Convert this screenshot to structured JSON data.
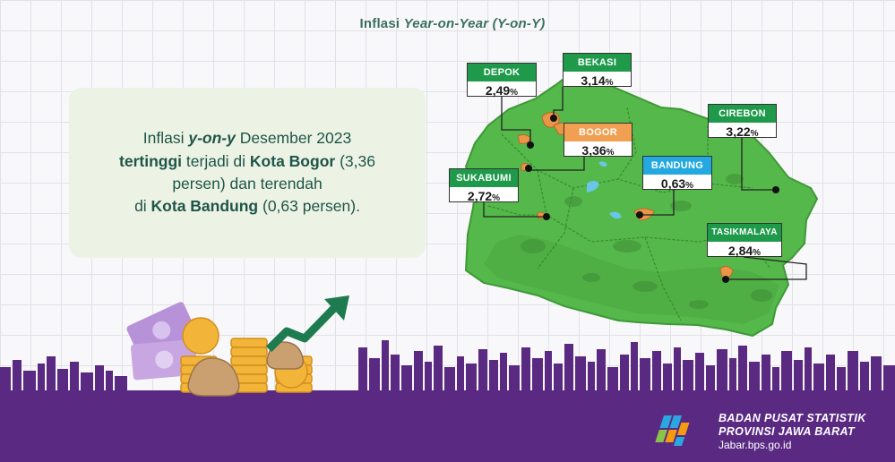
{
  "title": {
    "prefix": "Inflasi ",
    "italic": "Year-on-Year (Y-on-Y)"
  },
  "summary": {
    "t1": "Inflasi ",
    "t2": "y-on-y",
    "t3": " Desember 2023",
    "t4": "tertinggi",
    "t5": " terjadi di ",
    "t6": "Kota Bogor",
    "t7": " (3,36",
    "t8": "persen) dan terendah",
    "t9": "di ",
    "t10": "Kota Bandung",
    "t11": " (0,63 persen)."
  },
  "percent_sign": "%",
  "colors": {
    "green_label": "#1f9a4b",
    "orange_label": "#f0a050",
    "blue_label": "#23a8e0",
    "map_green": "#55b84a",
    "city_orange": "#e99647",
    "footer_purple": "#5a2a83"
  },
  "cities": [
    {
      "name": "DEPOK",
      "value": "2,49",
      "color": "green"
    },
    {
      "name": "BEKASI",
      "value": "3,14",
      "color": "green"
    },
    {
      "name": "BOGOR",
      "value": "3,36",
      "color": "orange"
    },
    {
      "name": "CIREBON",
      "value": "3,22",
      "color": "green"
    },
    {
      "name": "SUKABUMI",
      "value": "2,72",
      "color": "green"
    },
    {
      "name": "BANDUNG",
      "value": "0,63",
      "color": "blue"
    },
    {
      "name": "TASIKMALAYA",
      "value": "2,84",
      "color": "green"
    }
  ],
  "icons": [
    "money-growth-illustration-icon",
    "city-skyline-icon",
    "bps-logo-icon"
  ],
  "footer": {
    "org_line1": "BADAN PUSAT STATISTIK",
    "org_line2": "PROVINSI JAWA BARAT",
    "url": "Jabar.bps.go.id"
  }
}
